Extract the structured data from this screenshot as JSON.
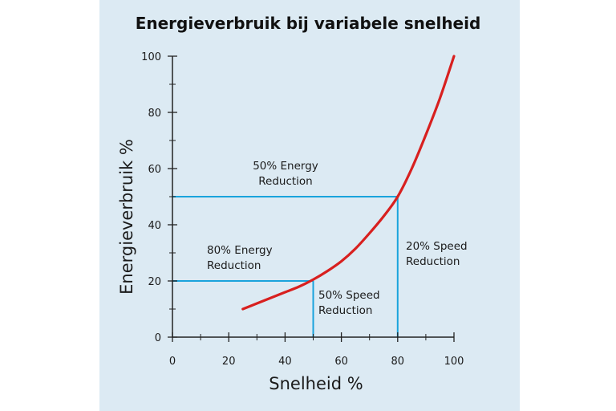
{
  "chart_data": {
    "type": "line",
    "title": "Energieverbruik bij variabele snelheid",
    "xlabel": "Snelheid %",
    "ylabel": "Energieverbruik %",
    "xlim": [
      0,
      100
    ],
    "ylim": [
      0,
      100
    ],
    "x_ticks": [
      0,
      20,
      40,
      60,
      80,
      100
    ],
    "y_ticks": [
      0,
      20,
      40,
      60,
      80,
      100
    ],
    "series": [
      {
        "x": [
          25,
          30,
          35,
          40,
          45,
          50,
          55,
          60,
          65,
          70,
          75,
          80,
          85,
          90,
          95,
          100
        ],
        "y": [
          10,
          12,
          14,
          16,
          18,
          20.5,
          23.5,
          27,
          31.5,
          37,
          43,
          50,
          60,
          72,
          85,
          100
        ]
      }
    ],
    "reference_lines": [
      {
        "x": 80,
        "y": 50
      },
      {
        "x": 50,
        "y": 20
      }
    ],
    "annotations": [
      {
        "lines": [
          "50% Energy",
          "Reduction"
        ]
      },
      {
        "lines": [
          "80% Energy",
          "Reduction"
        ]
      },
      {
        "lines": [
          "50% Speed",
          "Reduction"
        ]
      },
      {
        "lines": [
          "20% Speed",
          "Reduction"
        ]
      }
    ],
    "colors": {
      "curve": "#d8201f",
      "reference": "#1aa3dc",
      "axis": "#222222"
    },
    "grid": false
  }
}
